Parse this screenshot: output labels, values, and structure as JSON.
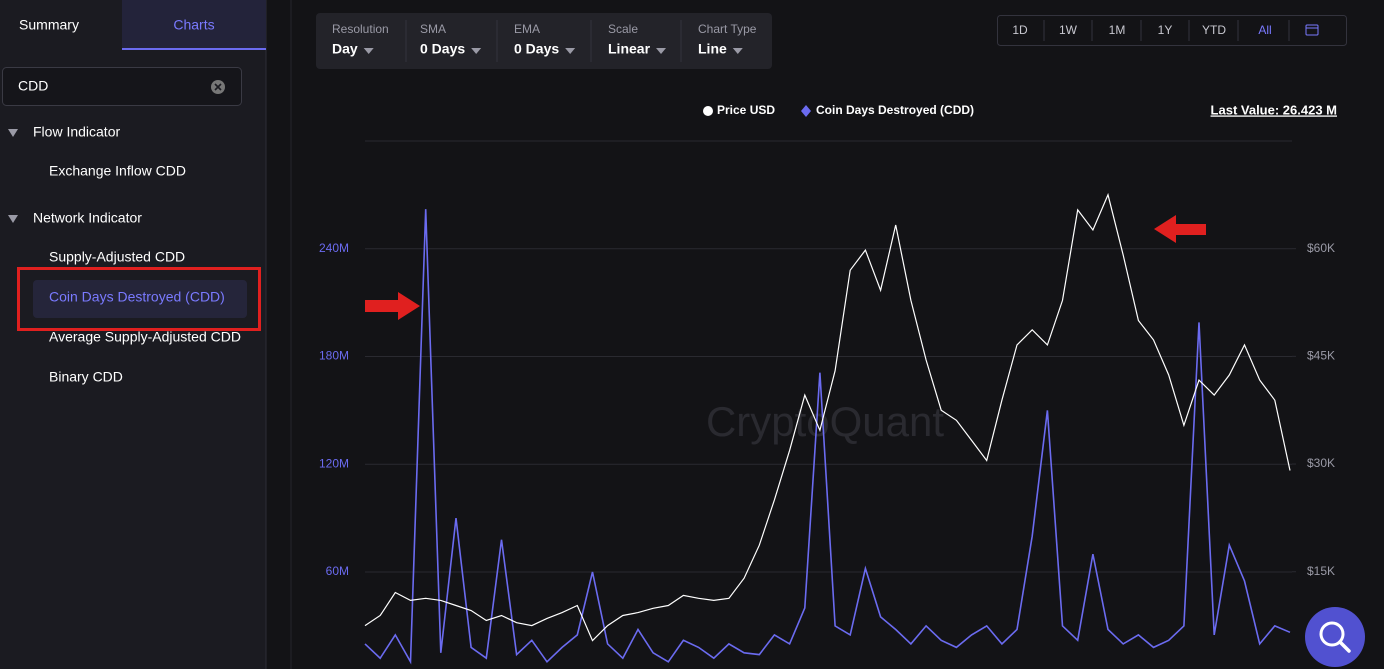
{
  "tabs": [
    "Summary",
    "Charts"
  ],
  "search": "CDD",
  "tree": [
    {
      "label": "Flow Indicator",
      "items": [
        "Exchange Inflow CDD"
      ]
    },
    {
      "label": "Network Indicator",
      "items": [
        "Supply-Adjusted CDD",
        "Coin Days Destroyed (CDD)",
        "Average Supply-Adjusted CDD",
        "Binary CDD"
      ]
    }
  ],
  "toolbar": [
    {
      "label": "Resolution",
      "value": "Day"
    },
    {
      "label": "SMA",
      "value": "0 Days"
    },
    {
      "label": "EMA",
      "value": "0 Days"
    },
    {
      "label": "Scale",
      "value": "Linear"
    },
    {
      "label": "Chart Type",
      "value": "Line"
    }
  ],
  "ranges": [
    "1D",
    "1W",
    "1M",
    "1Y",
    "YTD",
    "All"
  ],
  "last_value": "Last Value: 26.423 M",
  "watermark": "CryptoQuant",
  "chart_data": {
    "type": "line",
    "categories": [
      null,
      null,
      null,
      null,
      null,
      null,
      null,
      null,
      null,
      null,
      null,
      null,
      null,
      null,
      null,
      null,
      null,
      null,
      null,
      null,
      null,
      null,
      null,
      null,
      null,
      null,
      null,
      null,
      null,
      null,
      null,
      null,
      null,
      null,
      null,
      null,
      null,
      null,
      null,
      null,
      null,
      null,
      null,
      null,
      null,
      null,
      null,
      null,
      null,
      null,
      null,
      null,
      null,
      null,
      null,
      null,
      null,
      null,
      null,
      null,
      null,
      null
    ],
    "series": [
      {
        "name": "Price USD",
        "color": "#ffffff",
        "axis": "y2",
        "values": [
          7500,
          8900,
          12100,
          11000,
          11300,
          11000,
          10300,
          9600,
          8200,
          8900,
          7900,
          7500,
          8500,
          9300,
          10300,
          5400,
          7500,
          8900,
          9300,
          9900,
          10300,
          11700,
          11300,
          11000,
          11300,
          14100,
          18700,
          25000,
          31900,
          39600,
          34700,
          43000,
          57000,
          59800,
          54200,
          63300,
          52800,
          44500,
          37500,
          36100,
          33300,
          30500,
          38900,
          46600,
          48700,
          46600,
          52800,
          65400,
          62600,
          67500,
          59100,
          50000,
          47300,
          42400,
          35400,
          41700,
          39600,
          42400,
          46600,
          41700,
          38900,
          29100
        ]
      },
      {
        "name": "Coin Days Destroyed (CDD)",
        "color": "#6b6bf0",
        "values": [
          20000000,
          12000000,
          25000000,
          10000000,
          262000000,
          15000000,
          90000000,
          18000000,
          12000000,
          78000000,
          14000000,
          22000000,
          10000000,
          18000000,
          25000000,
          60000000,
          20000000,
          12000000,
          28000000,
          15000000,
          10000000,
          22000000,
          18000000,
          12000000,
          20000000,
          15000000,
          14000000,
          25000000,
          20000000,
          40000000,
          171000000,
          30000000,
          25000000,
          62000000,
          35000000,
          28000000,
          20000000,
          30000000,
          22000000,
          18000000,
          25000000,
          30000000,
          20000000,
          28000000,
          80000000,
          150000000,
          30000000,
          22000000,
          70000000,
          28000000,
          20000000,
          25000000,
          18000000,
          22000000,
          30000000,
          199000000,
          25000000,
          75000000,
          55000000,
          20000000,
          30000000,
          26423000
        ]
      }
    ],
    "ylim": [
      6000000,
      300000000
    ],
    "yticks": [
      {
        "value": 60000000,
        "label": "60M"
      },
      {
        "value": 120000000,
        "label": "120M"
      },
      {
        "value": 180000000,
        "label": "180M"
      },
      {
        "value": 240000000,
        "label": "240M"
      }
    ],
    "y2lim": [
      1450,
      75000
    ],
    "y2ticks": [
      {
        "value": 15000,
        "label": "$15K"
      },
      {
        "value": 30000,
        "label": "$30K"
      },
      {
        "value": 45000,
        "label": "$45K"
      },
      {
        "value": 60000,
        "label": "$60K"
      }
    ],
    "grid": true
  }
}
